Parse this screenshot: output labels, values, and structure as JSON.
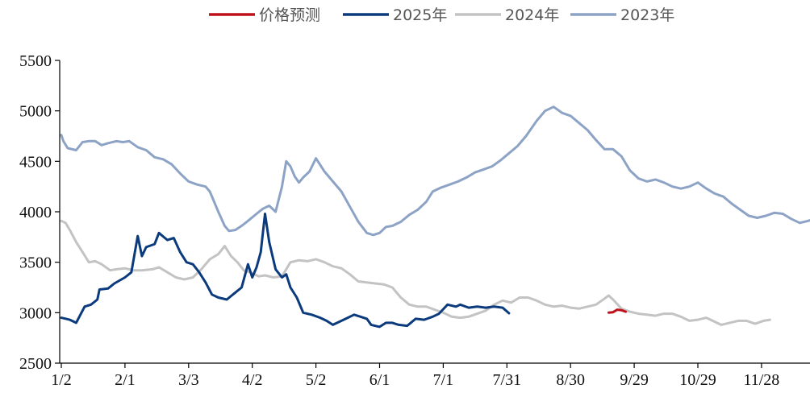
{
  "chart_data": {
    "type": "line",
    "title": "",
    "xlabel": "",
    "ylabel": "",
    "ylim": [
      2500,
      5500
    ],
    "yticks": [
      2500,
      3000,
      3500,
      4000,
      4500,
      5000,
      5500
    ],
    "xlim": [
      1,
      366
    ],
    "xticks": [
      {
        "label": "1/2",
        "day": 2
      },
      {
        "label": "2/1",
        "day": 32
      },
      {
        "label": "3/3",
        "day": 62
      },
      {
        "label": "4/2",
        "day": 92
      },
      {
        "label": "5/2",
        "day": 122
      },
      {
        "label": "6/1",
        "day": 152
      },
      {
        "label": "7/1",
        "day": 182
      },
      {
        "label": "7/31",
        "day": 212
      },
      {
        "label": "8/30",
        "day": 242
      },
      {
        "label": "9/29",
        "day": 272
      },
      {
        "label": "10/29",
        "day": 302
      },
      {
        "label": "11/28",
        "day": 332
      }
    ],
    "grid": false,
    "legend_position": "top",
    "series": [
      {
        "name": "价格预测",
        "color": "#c0101a",
        "width": 3,
        "points": [
          [
            260,
            3000
          ],
          [
            262,
            3005
          ],
          [
            264,
            3030
          ],
          [
            266,
            3025
          ],
          [
            268,
            3010
          ]
        ]
      },
      {
        "name": "2025年",
        "color": "#0b3a7d",
        "width": 3,
        "points": [
          [
            2,
            2950
          ],
          [
            6,
            2930
          ],
          [
            9,
            2900
          ],
          [
            13,
            3060
          ],
          [
            16,
            3080
          ],
          [
            19,
            3130
          ],
          [
            20,
            3230
          ],
          [
            24,
            3240
          ],
          [
            27,
            3290
          ],
          [
            32,
            3350
          ],
          [
            35,
            3400
          ],
          [
            38,
            3760
          ],
          [
            40,
            3560
          ],
          [
            42,
            3650
          ],
          [
            46,
            3680
          ],
          [
            48,
            3790
          ],
          [
            52,
            3720
          ],
          [
            55,
            3740
          ],
          [
            58,
            3600
          ],
          [
            61,
            3500
          ],
          [
            64,
            3480
          ],
          [
            67,
            3400
          ],
          [
            70,
            3300
          ],
          [
            73,
            3180
          ],
          [
            76,
            3150
          ],
          [
            80,
            3130
          ],
          [
            84,
            3200
          ],
          [
            87,
            3250
          ],
          [
            90,
            3480
          ],
          [
            92,
            3350
          ],
          [
            94,
            3450
          ],
          [
            96,
            3600
          ],
          [
            98,
            3980
          ],
          [
            100,
            3700
          ],
          [
            103,
            3430
          ],
          [
            106,
            3350
          ],
          [
            108,
            3380
          ],
          [
            110,
            3250
          ],
          [
            113,
            3150
          ],
          [
            116,
            3000
          ],
          [
            120,
            2980
          ],
          [
            124,
            2950
          ],
          [
            127,
            2920
          ],
          [
            130,
            2880
          ],
          [
            134,
            2920
          ],
          [
            137,
            2950
          ],
          [
            140,
            2980
          ],
          [
            143,
            2960
          ],
          [
            146,
            2940
          ],
          [
            148,
            2880
          ],
          [
            152,
            2860
          ],
          [
            155,
            2900
          ],
          [
            158,
            2900
          ],
          [
            161,
            2880
          ],
          [
            165,
            2870
          ],
          [
            169,
            2940
          ],
          [
            173,
            2930
          ],
          [
            177,
            2960
          ],
          [
            180,
            2990
          ],
          [
            184,
            3080
          ],
          [
            188,
            3060
          ],
          [
            190,
            3080
          ],
          [
            194,
            3050
          ],
          [
            198,
            3060
          ],
          [
            202,
            3050
          ],
          [
            206,
            3060
          ],
          [
            210,
            3050
          ],
          [
            213,
            2995
          ]
        ]
      },
      {
        "name": "2024年",
        "color": "#c3c3c3",
        "width": 3,
        "points": [
          [
            2,
            3910
          ],
          [
            4,
            3890
          ],
          [
            6,
            3820
          ],
          [
            9,
            3700
          ],
          [
            12,
            3600
          ],
          [
            15,
            3500
          ],
          [
            18,
            3510
          ],
          [
            21,
            3480
          ],
          [
            25,
            3420
          ],
          [
            28,
            3430
          ],
          [
            32,
            3440
          ],
          [
            36,
            3420
          ],
          [
            40,
            3420
          ],
          [
            45,
            3430
          ],
          [
            48,
            3450
          ],
          [
            52,
            3400
          ],
          [
            56,
            3350
          ],
          [
            60,
            3330
          ],
          [
            64,
            3350
          ],
          [
            68,
            3430
          ],
          [
            72,
            3530
          ],
          [
            76,
            3580
          ],
          [
            79,
            3660
          ],
          [
            82,
            3560
          ],
          [
            85,
            3500
          ],
          [
            88,
            3420
          ],
          [
            91,
            3400
          ],
          [
            95,
            3360
          ],
          [
            98,
            3370
          ],
          [
            102,
            3350
          ],
          [
            106,
            3360
          ],
          [
            110,
            3500
          ],
          [
            114,
            3520
          ],
          [
            118,
            3510
          ],
          [
            122,
            3530
          ],
          [
            126,
            3500
          ],
          [
            130,
            3460
          ],
          [
            134,
            3440
          ],
          [
            138,
            3380
          ],
          [
            142,
            3310
          ],
          [
            146,
            3300
          ],
          [
            150,
            3290
          ],
          [
            154,
            3280
          ],
          [
            158,
            3250
          ],
          [
            162,
            3150
          ],
          [
            166,
            3080
          ],
          [
            170,
            3060
          ],
          [
            174,
            3060
          ],
          [
            178,
            3030
          ],
          [
            182,
            3000
          ],
          [
            186,
            2960
          ],
          [
            190,
            2950
          ],
          [
            194,
            2960
          ],
          [
            198,
            2990
          ],
          [
            202,
            3020
          ],
          [
            206,
            3080
          ],
          [
            210,
            3120
          ],
          [
            214,
            3100
          ],
          [
            218,
            3150
          ],
          [
            222,
            3150
          ],
          [
            226,
            3120
          ],
          [
            230,
            3080
          ],
          [
            234,
            3060
          ],
          [
            238,
            3070
          ],
          [
            242,
            3050
          ],
          [
            246,
            3040
          ],
          [
            250,
            3060
          ],
          [
            254,
            3080
          ],
          [
            258,
            3140
          ],
          [
            260,
            3170
          ],
          [
            262,
            3130
          ],
          [
            266,
            3040
          ],
          [
            270,
            3010
          ],
          [
            274,
            2990
          ],
          [
            278,
            2980
          ],
          [
            282,
            2970
          ],
          [
            286,
            2990
          ],
          [
            290,
            2990
          ],
          [
            294,
            2960
          ],
          [
            298,
            2920
          ],
          [
            302,
            2930
          ],
          [
            306,
            2950
          ],
          [
            310,
            2910
          ],
          [
            313,
            2880
          ],
          [
            317,
            2900
          ],
          [
            321,
            2920
          ],
          [
            325,
            2920
          ],
          [
            329,
            2890
          ],
          [
            333,
            2920
          ],
          [
            336,
            2930
          ]
        ]
      },
      {
        "name": "2023年",
        "color": "#8da3c6",
        "width": 3,
        "points": [
          [
            2,
            4760
          ],
          [
            3,
            4700
          ],
          [
            5,
            4630
          ],
          [
            9,
            4610
          ],
          [
            12,
            4690
          ],
          [
            15,
            4700
          ],
          [
            18,
            4700
          ],
          [
            21,
            4660
          ],
          [
            24,
            4680
          ],
          [
            28,
            4700
          ],
          [
            31,
            4690
          ],
          [
            34,
            4700
          ],
          [
            38,
            4640
          ],
          [
            42,
            4610
          ],
          [
            46,
            4540
          ],
          [
            50,
            4520
          ],
          [
            54,
            4470
          ],
          [
            58,
            4380
          ],
          [
            62,
            4300
          ],
          [
            66,
            4270
          ],
          [
            70,
            4250
          ],
          [
            72,
            4200
          ],
          [
            74,
            4100
          ],
          [
            76,
            4000
          ],
          [
            79,
            3860
          ],
          [
            81,
            3810
          ],
          [
            84,
            3820
          ],
          [
            87,
            3860
          ],
          [
            90,
            3910
          ],
          [
            94,
            3980
          ],
          [
            97,
            4030
          ],
          [
            100,
            4060
          ],
          [
            103,
            4000
          ],
          [
            106,
            4250
          ],
          [
            108,
            4500
          ],
          [
            110,
            4450
          ],
          [
            112,
            4350
          ],
          [
            114,
            4290
          ],
          [
            116,
            4340
          ],
          [
            119,
            4400
          ],
          [
            122,
            4530
          ],
          [
            126,
            4400
          ],
          [
            130,
            4300
          ],
          [
            134,
            4200
          ],
          [
            138,
            4050
          ],
          [
            142,
            3900
          ],
          [
            146,
            3790
          ],
          [
            149,
            3770
          ],
          [
            152,
            3790
          ],
          [
            155,
            3850
          ],
          [
            158,
            3860
          ],
          [
            162,
            3900
          ],
          [
            166,
            3970
          ],
          [
            170,
            4020
          ],
          [
            174,
            4100
          ],
          [
            177,
            4200
          ],
          [
            181,
            4240
          ],
          [
            185,
            4270
          ],
          [
            189,
            4300
          ],
          [
            193,
            4340
          ],
          [
            197,
            4390
          ],
          [
            201,
            4420
          ],
          [
            205,
            4450
          ],
          [
            209,
            4510
          ],
          [
            213,
            4580
          ],
          [
            217,
            4650
          ],
          [
            221,
            4750
          ],
          [
            226,
            4900
          ],
          [
            230,
            5000
          ],
          [
            234,
            5040
          ],
          [
            238,
            4980
          ],
          [
            242,
            4950
          ],
          [
            246,
            4880
          ],
          [
            250,
            4810
          ],
          [
            254,
            4710
          ],
          [
            258,
            4620
          ],
          [
            262,
            4620
          ],
          [
            266,
            4550
          ],
          [
            270,
            4410
          ],
          [
            274,
            4330
          ],
          [
            278,
            4300
          ],
          [
            282,
            4320
          ],
          [
            286,
            4290
          ],
          [
            290,
            4250
          ],
          [
            294,
            4230
          ],
          [
            298,
            4250
          ],
          [
            302,
            4290
          ],
          [
            306,
            4230
          ],
          [
            310,
            4180
          ],
          [
            314,
            4150
          ],
          [
            318,
            4080
          ],
          [
            322,
            4020
          ],
          [
            326,
            3960
          ],
          [
            330,
            3940
          ],
          [
            334,
            3960
          ],
          [
            338,
            3990
          ],
          [
            342,
            3980
          ],
          [
            346,
            3930
          ],
          [
            350,
            3890
          ],
          [
            354,
            3910
          ],
          [
            358,
            3940
          ],
          [
            362,
            3960
          ],
          [
            366,
            3950
          ]
        ]
      }
    ]
  }
}
